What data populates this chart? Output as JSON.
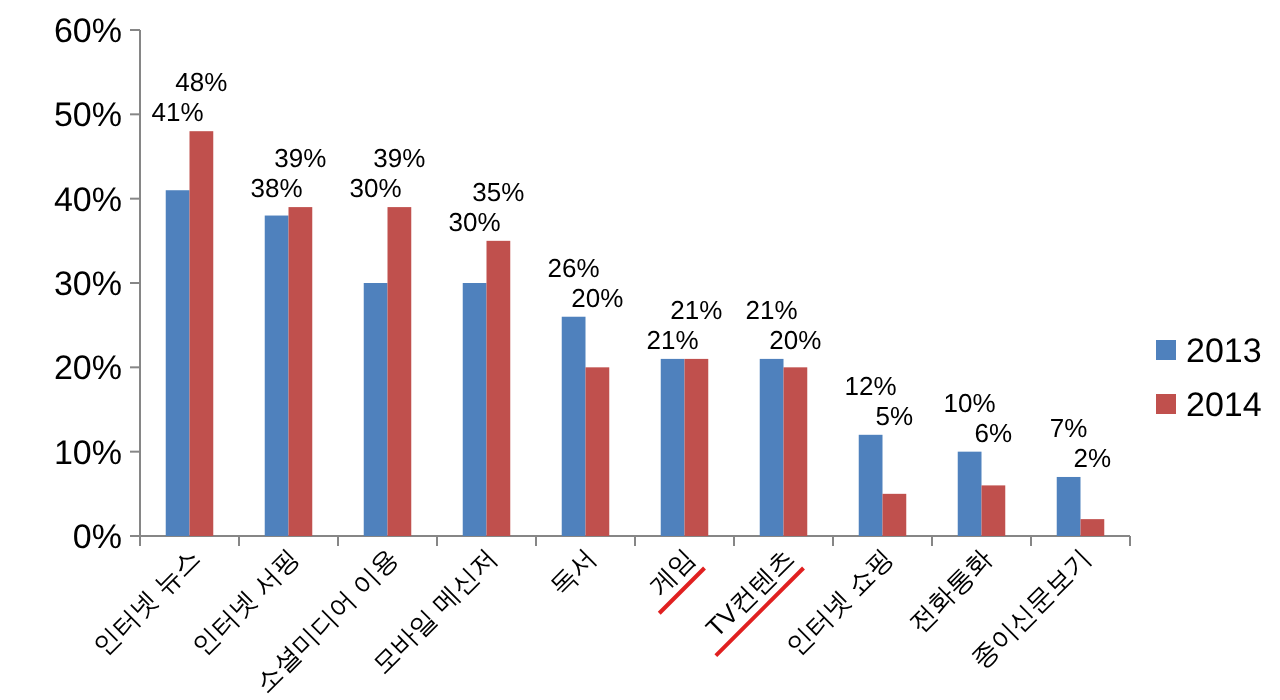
{
  "chart_data": {
    "type": "bar",
    "categories": [
      "인터넷 뉴스",
      "인터넷 서핑",
      "소셜미디어 이용",
      "모바일 메신저",
      "독서",
      "게임",
      "TV컨텐츠",
      "인터넷 쇼핑",
      "전화통화",
      "종이신문보기"
    ],
    "series": [
      {
        "name": "2013",
        "color": "#4f81bd",
        "values": [
          41,
          38,
          30,
          30,
          26,
          21,
          21,
          12,
          10,
          7
        ],
        "value_labels": [
          "41%",
          "38%",
          "30%",
          "30%",
          "26%",
          "21%",
          "21%",
          "12%",
          "10%",
          "7%"
        ]
      },
      {
        "name": "2014",
        "color": "#c0504d",
        "values": [
          48,
          39,
          39,
          35,
          20,
          21,
          20,
          5,
          6,
          2
        ],
        "value_labels": [
          "48%",
          "39%",
          "39%",
          "35%",
          "20%",
          "21%",
          "20%",
          "5%",
          "6%",
          "2%"
        ]
      }
    ],
    "ylim": [
      0,
      60
    ],
    "yticks": [
      {
        "value": 0,
        "label": "0%"
      },
      {
        "value": 10,
        "label": "10%"
      },
      {
        "value": 20,
        "label": "20%"
      },
      {
        "value": 30,
        "label": "30%"
      },
      {
        "value": 40,
        "label": "40%"
      },
      {
        "value": 50,
        "label": "50%"
      },
      {
        "value": 60,
        "label": "60%"
      }
    ],
    "grid": false,
    "legend": "right"
  }
}
